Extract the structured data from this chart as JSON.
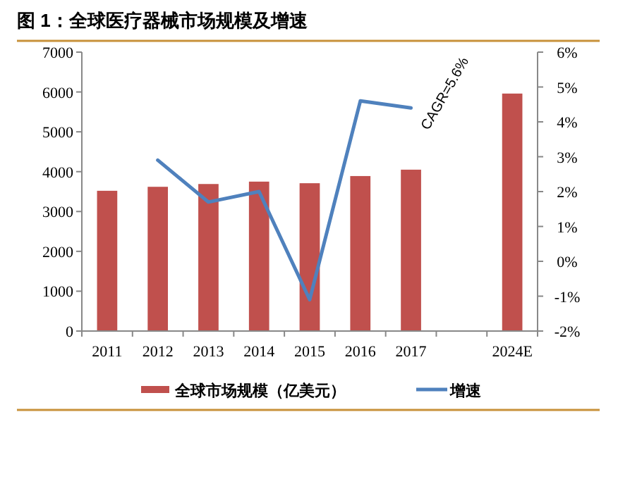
{
  "chart_data": {
    "type": "bar",
    "title": "图 1：全球医疗器械市场规模及增速",
    "categories": [
      "2011",
      "2012",
      "2013",
      "2014",
      "2015",
      "2016",
      "2017",
      null,
      "2024E"
    ],
    "series": [
      {
        "name": "全球市场规模（亿美元）",
        "color": "#c0504d",
        "values": [
          3520,
          3620,
          3690,
          3750,
          3710,
          3890,
          4050,
          null,
          5960
        ]
      },
      {
        "name": "增速",
        "type": "line",
        "axis": "y2",
        "color": "#4f81bd",
        "values": [
          null,
          2.9,
          1.7,
          2.0,
          -1.1,
          4.6,
          4.4,
          null,
          null
        ]
      }
    ],
    "ylim": [
      0,
      7000
    ],
    "yticks": [
      0,
      1000,
      2000,
      3000,
      4000,
      5000,
      6000,
      7000
    ],
    "y2lim": [
      -2,
      6
    ],
    "y2ticks": [
      {
        "value": -2,
        "label": "-2%"
      },
      {
        "value": -1,
        "label": "-1%"
      },
      {
        "value": 0,
        "label": "0%"
      },
      {
        "value": 1,
        "label": "1%"
      },
      {
        "value": 2,
        "label": "2%"
      },
      {
        "value": 3,
        "label": "3%"
      },
      {
        "value": 4,
        "label": "4%"
      },
      {
        "value": 5,
        "label": "5%"
      },
      {
        "value": 6,
        "label": "6%"
      }
    ],
    "legend": "bottom",
    "annotations": [
      "CAGR=5.6%"
    ]
  }
}
